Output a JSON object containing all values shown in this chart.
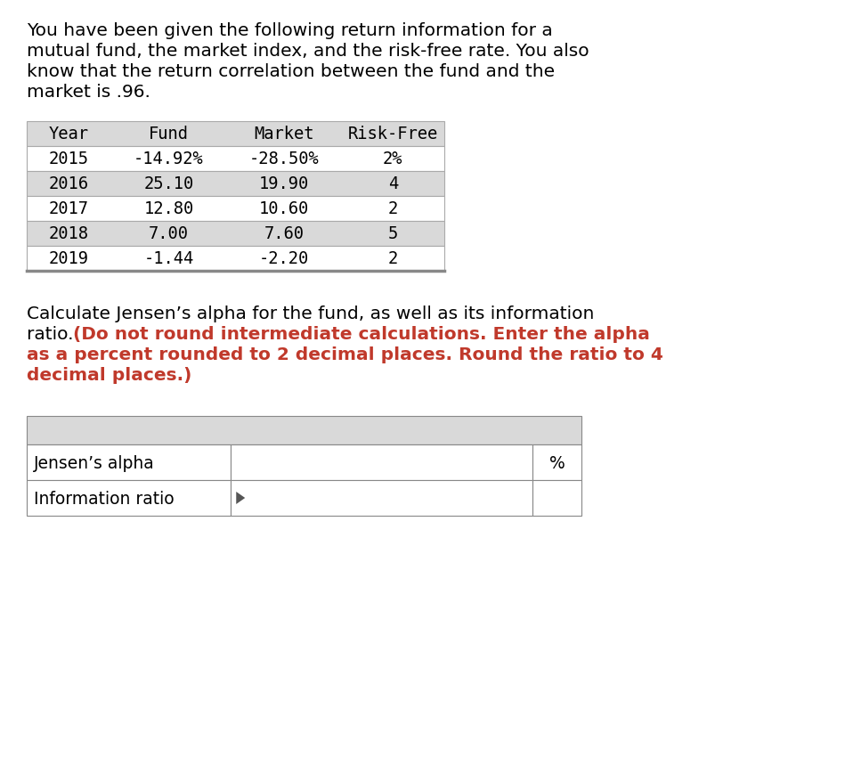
{
  "background_color": "#ffffff",
  "intro_text_lines": [
    "You have been given the following return information for a",
    "mutual fund, the market index, and the risk-free rate. You also",
    "know that the return correlation between the fund and the",
    "market is .96."
  ],
  "table1_headers": [
    "Year",
    "Fund",
    "Market",
    "Risk-Free"
  ],
  "table1_rows": [
    [
      "2015",
      "-14.92%",
      "-28.50%",
      "2%"
    ],
    [
      "2016",
      "25.10",
      "19.90",
      "4"
    ],
    [
      "2017",
      "12.80",
      "10.60",
      "2"
    ],
    [
      "2018",
      "7.00",
      "7.60",
      "5"
    ],
    [
      "2019",
      "-1.44",
      "-2.20",
      "2"
    ]
  ],
  "table1_row_colors": [
    "#ffffff",
    "#d9d9d9",
    "#ffffff",
    "#d9d9d9",
    "#ffffff"
  ],
  "table1_header_color": "#d9d9d9",
  "question_text_normal": "Calculate Jensen’s alpha for the fund, as well as its information",
  "question_text_normal2": "ratio. ",
  "question_text_bold": "(Do not round intermediate calculations. Enter the alpha",
  "question_text_bold2": "as a percent rounded to 2 decimal places. Round the ratio to 4",
  "question_text_bold3": "decimal places.)",
  "table2_rows": [
    "Jensen’s alpha",
    "Information ratio"
  ],
  "table2_header_color": "#d9d9d9",
  "percent_label": "%",
  "monospace_font": "DejaVu Sans Mono",
  "normal_font": "DejaVu Sans",
  "intro_fontsize": 14.5,
  "table1_fontsize": 13.5,
  "question_fontsize": 14.5,
  "table2_fontsize": 13.5,
  "bold_color": "#c0392b"
}
